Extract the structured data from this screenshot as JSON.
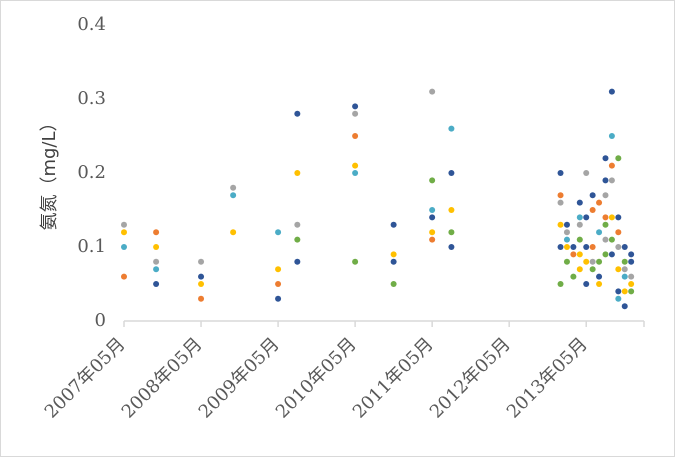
{
  "chart_data": {
    "type": "scatter",
    "title": "",
    "ylabel": "氨氮（mg/L）",
    "xlabel": "",
    "ylim": [
      0,
      0.4
    ],
    "y_ticks": [
      "0",
      "0.1",
      "0.2",
      "0.3",
      "0.4"
    ],
    "x_ticks": [
      "2007年05月",
      "2008年05月",
      "2009年05月",
      "2010年05月",
      "2011年05月",
      "2012年05月",
      "2013年05月"
    ],
    "xlim": [
      "2007-05",
      "2014-02"
    ],
    "grid": false,
    "legend": "none",
    "colors": {
      "blue": "#2f5597",
      "orange": "#ed7d31",
      "gray": "#a5a5a5",
      "yellow": "#ffc000",
      "lightblue": "#4bacc6",
      "green": "#70ad47",
      "axis": "#d9d9d9"
    },
    "points": [
      {
        "date": "2007-05",
        "y": 0.13,
        "color": "gray"
      },
      {
        "date": "2007-05",
        "y": 0.12,
        "color": "yellow"
      },
      {
        "date": "2007-05",
        "y": 0.1,
        "color": "lightblue"
      },
      {
        "date": "2007-05",
        "y": 0.06,
        "color": "orange"
      },
      {
        "date": "2007-10",
        "y": 0.12,
        "color": "orange"
      },
      {
        "date": "2007-10",
        "y": 0.1,
        "color": "yellow"
      },
      {
        "date": "2007-10",
        "y": 0.08,
        "color": "gray"
      },
      {
        "date": "2007-10",
        "y": 0.07,
        "color": "lightblue"
      },
      {
        "date": "2007-10",
        "y": 0.05,
        "color": "blue"
      },
      {
        "date": "2008-05",
        "y": 0.08,
        "color": "gray"
      },
      {
        "date": "2008-05",
        "y": 0.06,
        "color": "blue"
      },
      {
        "date": "2008-05",
        "y": 0.05,
        "color": "yellow"
      },
      {
        "date": "2008-05",
        "y": 0.03,
        "color": "orange"
      },
      {
        "date": "2008-10",
        "y": 0.18,
        "color": "gray"
      },
      {
        "date": "2008-10",
        "y": 0.17,
        "color": "lightblue"
      },
      {
        "date": "2008-10",
        "y": 0.12,
        "color": "yellow"
      },
      {
        "date": "2009-05",
        "y": 0.12,
        "color": "lightblue"
      },
      {
        "date": "2009-05",
        "y": 0.07,
        "color": "yellow"
      },
      {
        "date": "2009-05",
        "y": 0.05,
        "color": "orange"
      },
      {
        "date": "2009-05",
        "y": 0.03,
        "color": "blue"
      },
      {
        "date": "2009-08",
        "y": 0.28,
        "color": "blue"
      },
      {
        "date": "2009-08",
        "y": 0.2,
        "color": "yellow"
      },
      {
        "date": "2009-08",
        "y": 0.13,
        "color": "gray"
      },
      {
        "date": "2009-08",
        "y": 0.11,
        "color": "green"
      },
      {
        "date": "2009-08",
        "y": 0.08,
        "color": "blue"
      },
      {
        "date": "2010-05",
        "y": 0.29,
        "color": "blue"
      },
      {
        "date": "2010-05",
        "y": 0.28,
        "color": "gray"
      },
      {
        "date": "2010-05",
        "y": 0.25,
        "color": "orange"
      },
      {
        "date": "2010-05",
        "y": 0.21,
        "color": "yellow"
      },
      {
        "date": "2010-05",
        "y": 0.2,
        "color": "lightblue"
      },
      {
        "date": "2010-05",
        "y": 0.08,
        "color": "green"
      },
      {
        "date": "2010-11",
        "y": 0.13,
        "color": "blue"
      },
      {
        "date": "2010-11",
        "y": 0.09,
        "color": "yellow"
      },
      {
        "date": "2010-11",
        "y": 0.08,
        "color": "blue"
      },
      {
        "date": "2010-11",
        "y": 0.05,
        "color": "green"
      },
      {
        "date": "2011-05",
        "y": 0.31,
        "color": "gray"
      },
      {
        "date": "2011-05",
        "y": 0.19,
        "color": "green"
      },
      {
        "date": "2011-05",
        "y": 0.15,
        "color": "lightblue"
      },
      {
        "date": "2011-05",
        "y": 0.14,
        "color": "blue"
      },
      {
        "date": "2011-05",
        "y": 0.12,
        "color": "yellow"
      },
      {
        "date": "2011-05",
        "y": 0.11,
        "color": "orange"
      },
      {
        "date": "2011-08",
        "y": 0.26,
        "color": "lightblue"
      },
      {
        "date": "2011-08",
        "y": 0.2,
        "color": "blue"
      },
      {
        "date": "2011-08",
        "y": 0.15,
        "color": "yellow"
      },
      {
        "date": "2011-08",
        "y": 0.12,
        "color": "green"
      },
      {
        "date": "2011-08",
        "y": 0.1,
        "color": "blue"
      },
      {
        "date": "2013-01",
        "y": 0.2,
        "color": "blue"
      },
      {
        "date": "2013-01",
        "y": 0.17,
        "color": "orange"
      },
      {
        "date": "2013-01",
        "y": 0.16,
        "color": "gray"
      },
      {
        "date": "2013-01",
        "y": 0.13,
        "color": "yellow"
      },
      {
        "date": "2013-01",
        "y": 0.1,
        "color": "blue"
      },
      {
        "date": "2013-01",
        "y": 0.05,
        "color": "green"
      },
      {
        "date": "2013-02",
        "y": 0.13,
        "color": "blue"
      },
      {
        "date": "2013-02",
        "y": 0.12,
        "color": "gray"
      },
      {
        "date": "2013-02",
        "y": 0.11,
        "color": "lightblue"
      },
      {
        "date": "2013-02",
        "y": 0.1,
        "color": "yellow"
      },
      {
        "date": "2013-02",
        "y": 0.08,
        "color": "green"
      },
      {
        "date": "2013-03",
        "y": 0.1,
        "color": "blue"
      },
      {
        "date": "2013-03",
        "y": 0.09,
        "color": "orange"
      },
      {
        "date": "2013-03",
        "y": 0.06,
        "color": "green"
      },
      {
        "date": "2013-04",
        "y": 0.16,
        "color": "blue"
      },
      {
        "date": "2013-04",
        "y": 0.14,
        "color": "lightblue"
      },
      {
        "date": "2013-04",
        "y": 0.13,
        "color": "gray"
      },
      {
        "date": "2013-04",
        "y": 0.11,
        "color": "green"
      },
      {
        "date": "2013-04",
        "y": 0.09,
        "color": "yellow"
      },
      {
        "date": "2013-04",
        "y": 0.07,
        "color": "yellow"
      },
      {
        "date": "2013-05",
        "y": 0.2,
        "color": "gray"
      },
      {
        "date": "2013-05",
        "y": 0.14,
        "color": "blue"
      },
      {
        "date": "2013-05",
        "y": 0.1,
        "color": "blue"
      },
      {
        "date": "2013-05",
        "y": 0.08,
        "color": "yellow"
      },
      {
        "date": "2013-05",
        "y": 0.05,
        "color": "blue"
      },
      {
        "date": "2013-06",
        "y": 0.17,
        "color": "blue"
      },
      {
        "date": "2013-06",
        "y": 0.15,
        "color": "orange"
      },
      {
        "date": "2013-06",
        "y": 0.1,
        "color": "orange"
      },
      {
        "date": "2013-06",
        "y": 0.08,
        "color": "gray"
      },
      {
        "date": "2013-06",
        "y": 0.07,
        "color": "green"
      },
      {
        "date": "2013-07",
        "y": 0.16,
        "color": "orange"
      },
      {
        "date": "2013-07",
        "y": 0.12,
        "color": "lightblue"
      },
      {
        "date": "2013-07",
        "y": 0.08,
        "color": "green"
      },
      {
        "date": "2013-07",
        "y": 0.06,
        "color": "blue"
      },
      {
        "date": "2013-07",
        "y": 0.05,
        "color": "yellow"
      },
      {
        "date": "2013-08",
        "y": 0.22,
        "color": "blue"
      },
      {
        "date": "2013-08",
        "y": 0.19,
        "color": "blue"
      },
      {
        "date": "2013-08",
        "y": 0.17,
        "color": "gray"
      },
      {
        "date": "2013-08",
        "y": 0.14,
        "color": "orange"
      },
      {
        "date": "2013-08",
        "y": 0.13,
        "color": "green"
      },
      {
        "date": "2013-08",
        "y": 0.11,
        "color": "gray"
      },
      {
        "date": "2013-08",
        "y": 0.09,
        "color": "green"
      },
      {
        "date": "2013-09",
        "y": 0.31,
        "color": "blue"
      },
      {
        "date": "2013-09",
        "y": 0.25,
        "color": "lightblue"
      },
      {
        "date": "2013-09",
        "y": 0.21,
        "color": "orange"
      },
      {
        "date": "2013-09",
        "y": 0.19,
        "color": "gray"
      },
      {
        "date": "2013-09",
        "y": 0.14,
        "color": "yellow"
      },
      {
        "date": "2013-09",
        "y": 0.11,
        "color": "green"
      },
      {
        "date": "2013-09",
        "y": 0.09,
        "color": "blue"
      },
      {
        "date": "2013-10",
        "y": 0.22,
        "color": "green"
      },
      {
        "date": "2013-10",
        "y": 0.14,
        "color": "blue"
      },
      {
        "date": "2013-10",
        "y": 0.12,
        "color": "orange"
      },
      {
        "date": "2013-10",
        "y": 0.1,
        "color": "gray"
      },
      {
        "date": "2013-10",
        "y": 0.07,
        "color": "yellow"
      },
      {
        "date": "2013-10",
        "y": 0.04,
        "color": "blue"
      },
      {
        "date": "2013-10",
        "y": 0.03,
        "color": "lightblue"
      },
      {
        "date": "2013-11",
        "y": 0.1,
        "color": "blue"
      },
      {
        "date": "2013-11",
        "y": 0.08,
        "color": "green"
      },
      {
        "date": "2013-11",
        "y": 0.07,
        "color": "gray"
      },
      {
        "date": "2013-11",
        "y": 0.06,
        "color": "lightblue"
      },
      {
        "date": "2013-11",
        "y": 0.04,
        "color": "yellow"
      },
      {
        "date": "2013-11",
        "y": 0.02,
        "color": "blue"
      },
      {
        "date": "2013-12",
        "y": 0.09,
        "color": "blue"
      },
      {
        "date": "2013-12",
        "y": 0.08,
        "color": "blue"
      },
      {
        "date": "2013-12",
        "y": 0.06,
        "color": "gray"
      },
      {
        "date": "2013-12",
        "y": 0.05,
        "color": "yellow"
      },
      {
        "date": "2013-12",
        "y": 0.04,
        "color": "green"
      }
    ]
  }
}
